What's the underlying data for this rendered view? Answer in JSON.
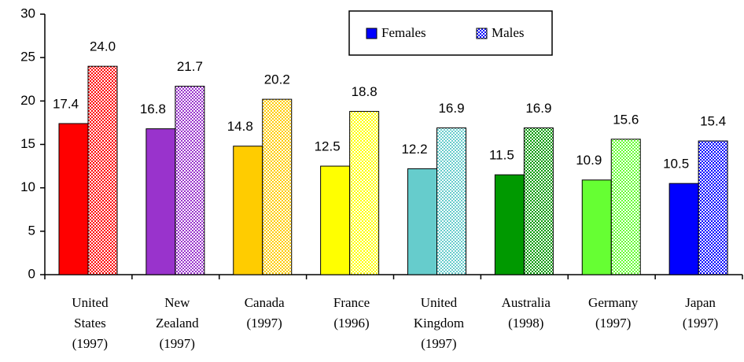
{
  "chart_data": {
    "type": "bar",
    "categories": [
      [
        "United",
        "States",
        "(1997)"
      ],
      [
        "New",
        "Zealand",
        "(1997)"
      ],
      [
        "Canada",
        "(1997)"
      ],
      [
        "France",
        "(1996)"
      ],
      [
        "United",
        "Kingdom",
        "(1997)"
      ],
      [
        "Australia",
        "(1998)"
      ],
      [
        "Germany",
        "(1997)"
      ],
      [
        "Japan",
        "(1997)"
      ]
    ],
    "series": [
      {
        "name": "Females",
        "color": "#0000ff",
        "pattern": "solid",
        "colors": [
          "#ff0000",
          "#9933cc",
          "#ffcc00",
          "#ffff00",
          "#66cccc",
          "#009900",
          "#66ff33",
          "#0000ff"
        ],
        "values": [
          17.4,
          16.8,
          14.8,
          12.5,
          12.2,
          11.5,
          10.9,
          10.5
        ],
        "value_labels": [
          "17.4",
          "16.8",
          "14.8",
          "12.5",
          "12.2",
          "11.5",
          "10.9",
          "10.5"
        ]
      },
      {
        "name": "Males",
        "color": "#0000ff",
        "pattern": "dotted",
        "colors": [
          "#ff0000",
          "#9933cc",
          "#ffcc00",
          "#ffff00",
          "#66cccc",
          "#009900",
          "#66ff33",
          "#0000ff"
        ],
        "values": [
          24.0,
          21.7,
          20.2,
          18.8,
          16.9,
          16.9,
          15.6,
          15.4
        ],
        "value_labels": [
          "24.0",
          "21.7",
          "20.2",
          "18.8",
          "16.9",
          "16.9",
          "15.6",
          "15.4"
        ]
      }
    ],
    "ylim": [
      0,
      30
    ],
    "yticks": [
      0,
      5,
      10,
      15,
      20,
      25,
      30
    ],
    "grid": false,
    "legend": "top-right"
  }
}
